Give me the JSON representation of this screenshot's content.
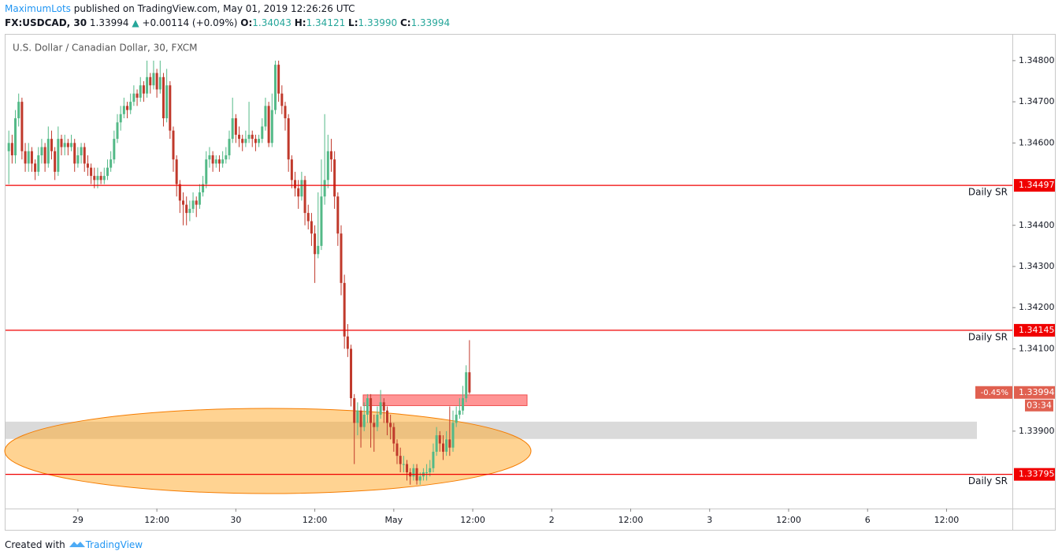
{
  "header": {
    "author": "MaximumLots",
    "published": "published on TradingView.com, May 01, 2019 12:26:26 UTC",
    "symbol": "FX:USDCAD, 30",
    "last": "1.33994",
    "change": "+0.00114 (+0.09%)",
    "ohlc": [
      {
        "label": "O:",
        "value": "1.34043"
      },
      {
        "label": "H:",
        "value": "1.34121"
      },
      {
        "label": "L:",
        "value": "1.33990"
      },
      {
        "label": "C:",
        "value": "1.33994"
      }
    ]
  },
  "chart_data": {
    "type": "candlestick",
    "title": "U.S. Dollar / Canadian Dollar, 30, FXCM",
    "up_color": "#53b987",
    "down_color": "#c0392b",
    "candles": [
      [
        1.3458,
        1.3463,
        1.345,
        1.346
      ],
      [
        1.346,
        1.3462,
        1.3455,
        1.3457
      ],
      [
        1.3457,
        1.3468,
        1.3455,
        1.3466
      ],
      [
        1.3466,
        1.3472,
        1.3464,
        1.347
      ],
      [
        1.347,
        1.3471,
        1.3456,
        1.3458
      ],
      [
        1.3458,
        1.346,
        1.3453,
        1.3455
      ],
      [
        1.3455,
        1.346,
        1.3453,
        1.3458
      ],
      [
        1.3458,
        1.3459,
        1.3453,
        1.3455
      ],
      [
        1.3455,
        1.3456,
        1.3451,
        1.3453
      ],
      [
        1.3453,
        1.3459,
        1.3452,
        1.3457
      ],
      [
        1.3457,
        1.3461,
        1.3455,
        1.3459
      ],
      [
        1.3459,
        1.346,
        1.3453,
        1.3455
      ],
      [
        1.3455,
        1.3464,
        1.3454,
        1.3461
      ],
      [
        1.3461,
        1.3463,
        1.3456,
        1.3458
      ],
      [
        1.3458,
        1.3459,
        1.3451,
        1.3453
      ],
      [
        1.3453,
        1.3464,
        1.3452,
        1.3461
      ],
      [
        1.3461,
        1.3462,
        1.3457,
        1.3459
      ],
      [
        1.3459,
        1.3462,
        1.3457,
        1.346
      ],
      [
        1.346,
        1.3461,
        1.3457,
        1.3459
      ],
      [
        1.3459,
        1.3462,
        1.3458,
        1.346
      ],
      [
        1.346,
        1.3461,
        1.3453,
        1.3455
      ],
      [
        1.3455,
        1.3459,
        1.3454,
        1.3457
      ],
      [
        1.3457,
        1.346,
        1.3455,
        1.3459
      ],
      [
        1.3459,
        1.346,
        1.3453,
        1.3455
      ],
      [
        1.3455,
        1.3457,
        1.3452,
        1.3454
      ],
      [
        1.3454,
        1.3455,
        1.345,
        1.3452
      ],
      [
        1.3452,
        1.3454,
        1.3449,
        1.3451
      ],
      [
        1.3451,
        1.3454,
        1.3449,
        1.3452
      ],
      [
        1.3452,
        1.3453,
        1.345,
        1.3451
      ],
      [
        1.3451,
        1.3454,
        1.345,
        1.3452
      ],
      [
        1.3452,
        1.3456,
        1.3451,
        1.3454
      ],
      [
        1.3454,
        1.3458,
        1.3453,
        1.3456
      ],
      [
        1.3456,
        1.3463,
        1.3455,
        1.3461
      ],
      [
        1.3461,
        1.3467,
        1.346,
        1.3465
      ],
      [
        1.3465,
        1.3469,
        1.3463,
        1.3467
      ],
      [
        1.3467,
        1.3471,
        1.3466,
        1.3469
      ],
      [
        1.3469,
        1.347,
        1.3466,
        1.3468
      ],
      [
        1.3468,
        1.3472,
        1.3467,
        1.347
      ],
      [
        1.347,
        1.3474,
        1.3469,
        1.3472
      ],
      [
        1.3472,
        1.3473,
        1.3469,
        1.3471
      ],
      [
        1.3471,
        1.3476,
        1.347,
        1.3474
      ],
      [
        1.3474,
        1.3475,
        1.347,
        1.3472
      ],
      [
        1.3472,
        1.348,
        1.3471,
        1.3476
      ],
      [
        1.3476,
        1.3477,
        1.3472,
        1.3474
      ],
      [
        1.3474,
        1.348,
        1.3473,
        1.3477
      ],
      [
        1.3477,
        1.3478,
        1.3471,
        1.3473
      ],
      [
        1.3473,
        1.348,
        1.3472,
        1.3476
      ],
      [
        1.3476,
        1.3477,
        1.3464,
        1.3466
      ],
      [
        1.3466,
        1.3478,
        1.3465,
        1.3474
      ],
      [
        1.3474,
        1.3475,
        1.3461,
        1.3463
      ],
      [
        1.3463,
        1.3464,
        1.3453,
        1.3456
      ],
      [
        1.3456,
        1.3457,
        1.3447,
        1.345
      ],
      [
        1.345,
        1.3451,
        1.3443,
        1.3446
      ],
      [
        1.3446,
        1.3448,
        1.344,
        1.3445
      ],
      [
        1.3445,
        1.3447,
        1.344,
        1.3443
      ],
      [
        1.3443,
        1.3446,
        1.3441,
        1.3444
      ],
      [
        1.3444,
        1.3448,
        1.3443,
        1.3446
      ],
      [
        1.3446,
        1.3447,
        1.3442,
        1.3445
      ],
      [
        1.3445,
        1.345,
        1.3444,
        1.3448
      ],
      [
        1.3448,
        1.3452,
        1.3447,
        1.345
      ],
      [
        1.345,
        1.3458,
        1.3449,
        1.3456
      ],
      [
        1.3456,
        1.3459,
        1.3454,
        1.3457
      ],
      [
        1.3457,
        1.3458,
        1.3453,
        1.3455
      ],
      [
        1.3455,
        1.3457,
        1.3454,
        1.3456
      ],
      [
        1.3456,
        1.3457,
        1.3453,
        1.3455
      ],
      [
        1.3455,
        1.3458,
        1.3454,
        1.3456
      ],
      [
        1.3456,
        1.3459,
        1.3455,
        1.3457
      ],
      [
        1.3457,
        1.3463,
        1.3456,
        1.3461
      ],
      [
        1.3461,
        1.3471,
        1.346,
        1.3466
      ],
      [
        1.3466,
        1.3467,
        1.346,
        1.3462
      ],
      [
        1.3462,
        1.3464,
        1.3459,
        1.3461
      ],
      [
        1.3461,
        1.3462,
        1.3458,
        1.346
      ],
      [
        1.346,
        1.3463,
        1.3459,
        1.3461
      ],
      [
        1.3461,
        1.347,
        1.346,
        1.3462
      ],
      [
        1.3462,
        1.3463,
        1.3459,
        1.3461
      ],
      [
        1.3461,
        1.3462,
        1.3458,
        1.346
      ],
      [
        1.346,
        1.3462,
        1.3459,
        1.3461
      ],
      [
        1.3461,
        1.3466,
        1.346,
        1.3464
      ],
      [
        1.3464,
        1.3471,
        1.3463,
        1.3469
      ],
      [
        1.3469,
        1.347,
        1.3459,
        1.346
      ],
      [
        1.346,
        1.3472,
        1.3459,
        1.3468
      ],
      [
        1.3468,
        1.348,
        1.3467,
        1.3479
      ],
      [
        1.3479,
        1.348,
        1.347,
        1.3472
      ],
      [
        1.3472,
        1.3474,
        1.3467,
        1.3469
      ],
      [
        1.3469,
        1.347,
        1.3463,
        1.3466
      ],
      [
        1.3466,
        1.3467,
        1.3453,
        1.3456
      ],
      [
        1.3456,
        1.3457,
        1.3449,
        1.3451
      ],
      [
        1.3451,
        1.3453,
        1.3447,
        1.3449
      ],
      [
        1.3449,
        1.3451,
        1.3444,
        1.3447
      ],
      [
        1.3447,
        1.3453,
        1.3446,
        1.3451
      ],
      [
        1.3451,
        1.3452,
        1.344,
        1.3443
      ],
      [
        1.3443,
        1.3445,
        1.3439,
        1.3441
      ],
      [
        1.3441,
        1.3443,
        1.3435,
        1.3438
      ],
      [
        1.3438,
        1.344,
        1.3426,
        1.3433
      ],
      [
        1.3433,
        1.3448,
        1.3432,
        1.3435
      ],
      [
        1.3435,
        1.3456,
        1.3434,
        1.3447
      ],
      [
        1.3447,
        1.3467,
        1.3445,
        1.3451
      ],
      [
        1.3451,
        1.3462,
        1.3449,
        1.3458
      ],
      [
        1.3458,
        1.3461,
        1.3453,
        1.3456
      ],
      [
        1.3456,
        1.3458,
        1.3444,
        1.3447
      ],
      [
        1.3447,
        1.3448,
        1.3435,
        1.3438
      ],
      [
        1.3438,
        1.344,
        1.3423,
        1.3426
      ],
      [
        1.3426,
        1.3428,
        1.341,
        1.3413
      ],
      [
        1.3413,
        1.3416,
        1.3408,
        1.341
      ],
      [
        1.341,
        1.3411,
        1.3396,
        1.3398
      ],
      [
        1.3398,
        1.3399,
        1.3382,
        1.3392
      ],
      [
        1.3392,
        1.3397,
        1.3389,
        1.3395
      ],
      [
        1.3395,
        1.3396,
        1.3386,
        1.3391
      ],
      [
        1.3391,
        1.3397,
        1.339,
        1.3394
      ],
      [
        1.3394,
        1.3399,
        1.3392,
        1.3398
      ],
      [
        1.3398,
        1.3399,
        1.3386,
        1.3392
      ],
      [
        1.3392,
        1.3394,
        1.3385,
        1.3391
      ],
      [
        1.3391,
        1.3396,
        1.339,
        1.3394
      ],
      [
        1.3394,
        1.34,
        1.3393,
        1.3397
      ],
      [
        1.3397,
        1.3398,
        1.3392,
        1.3395
      ],
      [
        1.3395,
        1.3396,
        1.3389,
        1.3392
      ],
      [
        1.3392,
        1.3394,
        1.3388,
        1.3391
      ],
      [
        1.3391,
        1.3392,
        1.3385,
        1.3387
      ],
      [
        1.3387,
        1.3388,
        1.3382,
        1.3384
      ],
      [
        1.3384,
        1.3386,
        1.338,
        1.3382
      ],
      [
        1.3382,
        1.3384,
        1.338,
        1.3382
      ],
      [
        1.3382,
        1.3383,
        1.3378,
        1.338
      ],
      [
        1.338,
        1.3381,
        1.3377,
        1.3379
      ],
      [
        1.3379,
        1.3382,
        1.3378,
        1.3381
      ],
      [
        1.3381,
        1.3382,
        1.3377,
        1.3378
      ],
      [
        1.3378,
        1.338,
        1.3377,
        1.3379
      ],
      [
        1.3379,
        1.3381,
        1.3378,
        1.338
      ],
      [
        1.338,
        1.3382,
        1.3378,
        1.338
      ],
      [
        1.338,
        1.3383,
        1.3379,
        1.3381
      ],
      [
        1.3381,
        1.3387,
        1.338,
        1.3385
      ],
      [
        1.3385,
        1.3391,
        1.3384,
        1.3389
      ],
      [
        1.3389,
        1.339,
        1.3385,
        1.3387
      ],
      [
        1.3387,
        1.3389,
        1.3383,
        1.3385
      ],
      [
        1.3385,
        1.339,
        1.3384,
        1.3388
      ],
      [
        1.3388,
        1.3396,
        1.3384,
        1.3386
      ],
      [
        1.3386,
        1.3395,
        1.3385,
        1.3392
      ],
      [
        1.3392,
        1.3396,
        1.3391,
        1.3394
      ],
      [
        1.3394,
        1.3398,
        1.3393,
        1.3395
      ],
      [
        1.3395,
        1.3401,
        1.3394,
        1.3398
      ],
      [
        1.3398,
        1.3406,
        1.3397,
        1.34043
      ],
      [
        1.34043,
        1.34121,
        1.3399,
        1.33994
      ]
    ],
    "xlim": [
      -1,
      305
    ],
    "xticks": [
      {
        "value": 21,
        "label": "29"
      },
      {
        "value": 45,
        "label": "12:00"
      },
      {
        "value": 69,
        "label": "30"
      },
      {
        "value": 93,
        "label": "12:00"
      },
      {
        "value": 117,
        "label": "May"
      },
      {
        "value": 141,
        "label": "12:00"
      },
      {
        "value": 165,
        "label": "2"
      },
      {
        "value": 189,
        "label": "12:00"
      },
      {
        "value": 213,
        "label": "3"
      },
      {
        "value": 237,
        "label": "12:00"
      },
      {
        "value": 261,
        "label": "6"
      },
      {
        "value": 285,
        "label": "12:00"
      }
    ],
    "ylim": [
      1.33712,
      1.34863
    ],
    "yticks": [
      {
        "value": 1.348,
        "label": "1.34800"
      },
      {
        "value": 1.347,
        "label": "1.34700"
      },
      {
        "value": 1.346,
        "label": "1.34600"
      },
      {
        "value": 1.344,
        "label": "1.34400"
      },
      {
        "value": 1.343,
        "label": "1.34300"
      },
      {
        "value": 1.342,
        "label": "1.34200"
      },
      {
        "value": 1.341,
        "label": "1.34100"
      },
      {
        "value": 1.339,
        "label": "1.33900"
      }
    ],
    "levels": [
      {
        "value": 1.34497,
        "label": "Daily SR",
        "color": "#f00000"
      },
      {
        "value": 1.34145,
        "label": "Daily SR",
        "color": "#f00000"
      },
      {
        "value": 1.33795,
        "label": "Daily SR",
        "color": "#f00000"
      }
    ],
    "zones": [
      {
        "low": 1.33881,
        "high": 1.33923,
        "color": "#d6d6d6"
      },
      {
        "low": 1.33962,
        "high": 1.33988,
        "color": "#ff8a8a"
      }
    ],
    "last_price": {
      "value": 1.33994,
      "change": "-0.45%",
      "countdown": "03:34",
      "color": "#e06050"
    }
  },
  "footer": {
    "created": "Created with",
    "brand": "TradingView"
  }
}
